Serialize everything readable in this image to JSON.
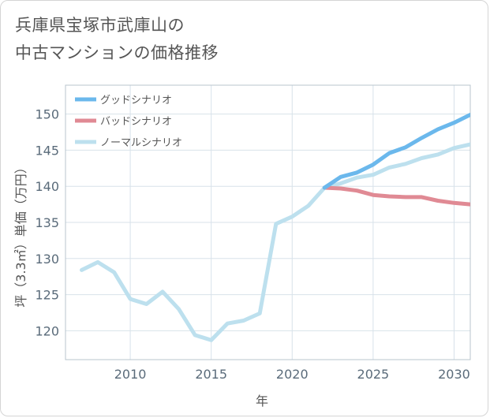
{
  "title_line1": "兵庫県宝塚市武庫山の",
  "title_line2": "中古マンションの価格推移",
  "chart_data": {
    "type": "line",
    "xlabel": "年",
    "ylabel": "坪（3.3㎡）単価（万円）",
    "xlim": [
      2006,
      2031
    ],
    "ylim": [
      116,
      154
    ],
    "x_ticks": [
      2010,
      2015,
      2020,
      2025,
      2030
    ],
    "y_ticks": [
      120,
      125,
      130,
      135,
      140,
      145,
      150
    ],
    "grid": true,
    "legend_position": "top-left",
    "series": [
      {
        "name": "グッドシナリオ",
        "color": "#6bb8ec",
        "x": [
          2022,
          2023,
          2024,
          2025,
          2026,
          2027,
          2028,
          2029,
          2030,
          2031
        ],
        "y": [
          139.8,
          141.3,
          141.9,
          143.0,
          144.6,
          145.4,
          146.7,
          147.9,
          148.8,
          149.9
        ]
      },
      {
        "name": "バッドシナリオ",
        "color": "#e08a94",
        "x": [
          2022,
          2023,
          2024,
          2025,
          2026,
          2027,
          2028,
          2029,
          2030,
          2031
        ],
        "y": [
          139.8,
          139.7,
          139.4,
          138.8,
          138.6,
          138.5,
          138.5,
          138.0,
          137.7,
          137.5
        ]
      },
      {
        "name": "ノーマルシナリオ",
        "color": "#bde0ee",
        "x": [
          2007,
          2008,
          2009,
          2010,
          2011,
          2012,
          2013,
          2014,
          2015,
          2016,
          2017,
          2018,
          2019,
          2020,
          2021,
          2022,
          2023,
          2024,
          2025,
          2026,
          2027,
          2028,
          2029,
          2030,
          2031
        ],
        "y": [
          128.4,
          129.5,
          128.1,
          124.4,
          123.7,
          125.4,
          123.0,
          119.4,
          118.7,
          121.0,
          121.4,
          122.4,
          134.8,
          135.8,
          137.3,
          139.8,
          140.4,
          141.2,
          141.6,
          142.6,
          143.1,
          143.9,
          144.4,
          145.3,
          145.8
        ]
      }
    ]
  }
}
